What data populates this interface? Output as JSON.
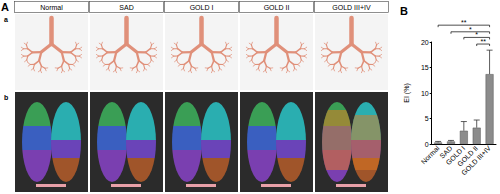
{
  "panel_a": {
    "label": "A",
    "columns": [
      "Normal",
      "SAD",
      "GOLD I",
      "GOLD II",
      "GOLD III+IV"
    ],
    "rows": [
      "a",
      "b"
    ]
  },
  "chart_data": {
    "type": "bar",
    "title": "B",
    "y_label": "EI (%)",
    "categories": [
      "Normal",
      "SAD",
      "GOLD I",
      "GOLD II",
      "GOLD III+IV"
    ],
    "values": [
      0.3,
      0.5,
      2.6,
      3.2,
      13.7
    ],
    "errors": [
      0.2,
      0.2,
      1.8,
      1.5,
      4.7
    ],
    "color": "#8c8c8c",
    "ylim": [
      0,
      20
    ],
    "yticks": [
      0,
      5,
      10,
      15,
      20
    ],
    "grid": false,
    "annotations": [
      {
        "from": "Normal",
        "to": "GOLD III+IV",
        "label": "**",
        "y": 23.3
      },
      {
        "from": "SAD",
        "to": "GOLD III+IV",
        "label": "*",
        "y": 22.0
      },
      {
        "from": "GOLD I",
        "to": "GOLD III+IV",
        "label": "*",
        "y": 20.9
      },
      {
        "from": "GOLD II",
        "to": "GOLD III+IV",
        "label": "**",
        "y": 19.6
      }
    ]
  }
}
